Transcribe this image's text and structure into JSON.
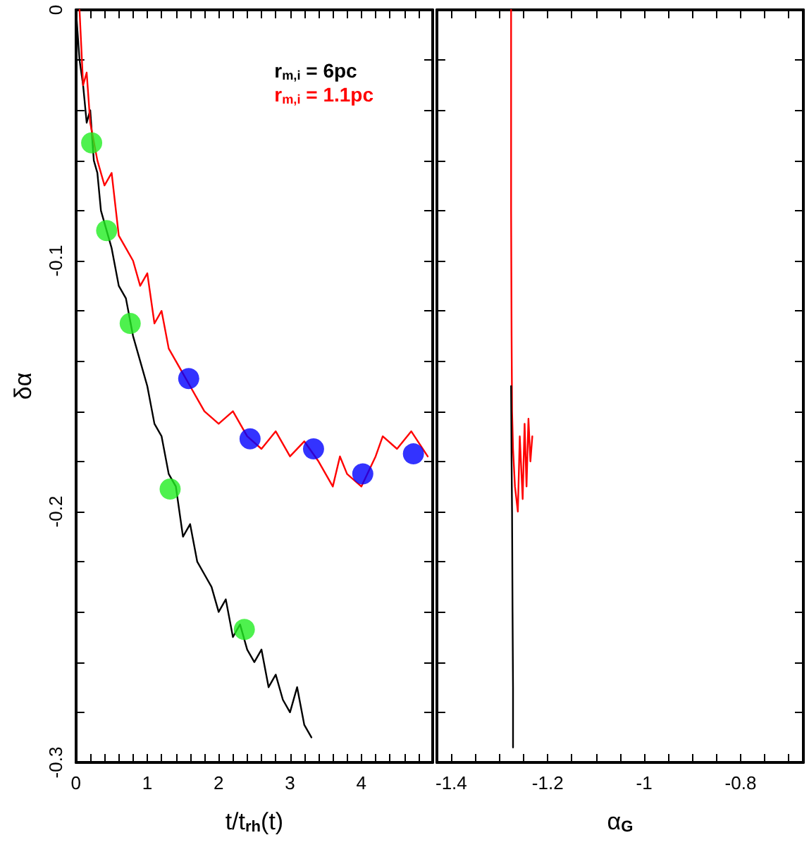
{
  "chart_data": [
    {
      "type": "line",
      "xlabel": "t/t$_{rh}$(t)",
      "ylabel": "δα",
      "xlim": [
        0,
        5
      ],
      "ylim": [
        -0.3,
        0
      ],
      "xticks": [
        0,
        {
          "value": 0.2,
          "label": null
        },
        {
          "value": 0.4,
          "label": null
        },
        {
          "value": 0.6,
          "label": null
        },
        {
          "value": 0.8,
          "label": null
        },
        1,
        {
          "value": 1.2,
          "label": null
        },
        {
          "value": 1.4,
          "label": null
        },
        {
          "value": 1.6,
          "label": null
        },
        {
          "value": 1.8,
          "label": null
        },
        2,
        {
          "value": 2.2,
          "label": null
        },
        {
          "value": 2.4,
          "label": null
        },
        {
          "value": 2.6,
          "label": null
        },
        {
          "value": 2.8,
          "label": null
        },
        3,
        {
          "value": 3.2,
          "label": null
        },
        {
          "value": 3.4,
          "label": null
        },
        {
          "value": 3.6,
          "label": null
        },
        {
          "value": 3.8,
          "label": null
        },
        4,
        {
          "value": 4.2,
          "label": null
        },
        {
          "value": 4.4,
          "label": null
        },
        {
          "value": 4.6,
          "label": null
        },
        {
          "value": 4.8,
          "label": null
        }
      ],
      "yticks": [
        -0.3,
        {
          "value": -0.28,
          "label": null
        },
        {
          "value": -0.26,
          "label": null
        },
        {
          "value": -0.24,
          "label": null
        },
        {
          "value": -0.22,
          "label": null
        },
        -0.2,
        {
          "value": -0.18,
          "label": null
        },
        {
          "value": -0.16,
          "label": null
        },
        {
          "value": -0.14,
          "label": null
        },
        {
          "value": -0.12,
          "label": null
        },
        -0.1,
        {
          "value": -0.08,
          "label": null
        },
        {
          "value": -0.06,
          "label": null
        },
        {
          "value": -0.04,
          "label": null
        },
        {
          "value": -0.02,
          "label": null
        },
        0
      ],
      "grid": false,
      "legend": "top right",
      "line_style": "solid",
      "series": [
        {
          "name": "r$_{m,i}$ = 6pc",
          "color": "#000000",
          "marker": "none",
          "x": [
            0,
            0.05,
            0.1,
            0.15,
            0.2,
            0.25,
            0.3,
            0.35,
            0.4,
            0.5,
            0.6,
            0.7,
            0.8,
            0.9,
            1.0,
            1.1,
            1.2,
            1.3,
            1.4,
            1.5,
            1.6,
            1.7,
            1.8,
            1.9,
            2.0,
            2.1,
            2.2,
            2.3,
            2.4,
            2.5,
            2.6,
            2.7,
            2.8,
            2.9,
            3.0,
            3.1,
            3.2,
            3.3
          ],
          "values": [
            0,
            -0.02,
            -0.03,
            -0.045,
            -0.04,
            -0.06,
            -0.065,
            -0.08,
            -0.085,
            -0.095,
            -0.11,
            -0.115,
            -0.13,
            -0.14,
            -0.15,
            -0.165,
            -0.17,
            -0.185,
            -0.19,
            -0.21,
            -0.205,
            -0.22,
            -0.225,
            -0.23,
            -0.24,
            -0.235,
            -0.25,
            -0.245,
            -0.255,
            -0.26,
            -0.255,
            -0.27,
            -0.265,
            -0.275,
            -0.28,
            -0.27,
            -0.285,
            -0.29
          ]
        },
        {
          "name": "r$_{m,i}$ = 1.1pc",
          "color": "#ff0000",
          "marker": "none",
          "x": [
            0.05,
            0.1,
            0.15,
            0.2,
            0.3,
            0.4,
            0.5,
            0.6,
            0.7,
            0.8,
            0.9,
            1.0,
            1.1,
            1.2,
            1.3,
            1.4,
            1.5,
            1.6,
            1.7,
            1.8,
            2.0,
            2.2,
            2.4,
            2.6,
            2.8,
            3.0,
            3.2,
            3.4,
            3.6,
            3.7,
            3.8,
            4.0,
            4.2,
            4.3,
            4.5,
            4.7,
            4.93
          ],
          "values": [
            0,
            -0.03,
            -0.025,
            -0.045,
            -0.06,
            -0.07,
            -0.065,
            -0.09,
            -0.095,
            -0.1,
            -0.11,
            -0.105,
            -0.125,
            -0.12,
            -0.135,
            -0.14,
            -0.145,
            -0.15,
            -0.155,
            -0.16,
            -0.165,
            -0.16,
            -0.17,
            -0.175,
            -0.168,
            -0.178,
            -0.172,
            -0.18,
            -0.19,
            -0.178,
            -0.185,
            -0.19,
            -0.178,
            -0.17,
            -0.175,
            -0.168,
            -0.178
          ]
        },
        {
          "color": "#22ee22",
          "type": "scatter",
          "marker": "circle",
          "x": [
            0.22,
            0.43,
            0.76,
            1.32,
            2.36
          ],
          "values": [
            -0.053,
            -0.088,
            -0.125,
            -0.191,
            -0.247
          ]
        },
        {
          "color": "#0000ff",
          "type": "scatter",
          "marker": "circle",
          "x": [
            1.58,
            2.44,
            3.33,
            4.02,
            4.73
          ],
          "values": [
            -0.147,
            -0.171,
            -0.175,
            -0.185,
            -0.177
          ]
        }
      ]
    },
    {
      "type": "line",
      "xlabel": "α$_{G}$",
      "xlim": [
        -1.43,
        -0.67
      ],
      "ylim": [
        -0.3,
        0
      ],
      "tick_labels": "x",
      "xticks": [
        -1.4,
        {
          "value": -1.35,
          "label": null
        },
        {
          "value": -1.3,
          "label": null
        },
        {
          "value": -1.25,
          "label": null
        },
        -1.2,
        {
          "value": -1.15,
          "label": null
        },
        {
          "value": -1.1,
          "label": null
        },
        {
          "value": -1.05,
          "label": null
        },
        -1,
        {
          "value": -0.95,
          "label": null
        },
        {
          "value": -0.9,
          "label": null
        },
        {
          "value": -0.85,
          "label": null
        },
        -0.8,
        {
          "value": -0.75,
          "label": null
        },
        {
          "value": -0.7,
          "label": null
        }
      ],
      "yticks": [
        -0.3,
        {
          "value": -0.28,
          "label": null
        },
        {
          "value": -0.26,
          "label": null
        },
        {
          "value": -0.24,
          "label": null
        },
        {
          "value": -0.22,
          "label": null
        },
        -0.2,
        {
          "value": -0.18,
          "label": null
        },
        {
          "value": -0.16,
          "label": null
        },
        {
          "value": -0.14,
          "label": null
        },
        {
          "value": -0.12,
          "label": null
        },
        -0.1,
        {
          "value": -0.08,
          "label": null
        },
        {
          "value": -0.06,
          "label": null
        },
        {
          "value": -0.04,
          "label": null
        },
        {
          "value": -0.02,
          "label": null
        },
        0
      ],
      "grid": false,
      "line_style": "solid",
      "marker": "none",
      "series": [
        {
          "color": "#ff0000",
          "x": [
            -1.276,
            -1.276,
            -1.275,
            -1.274,
            -1.272,
            -1.268,
            -1.262,
            -1.258,
            -1.252,
            -1.248,
            -1.244,
            -1.24,
            -1.236,
            -1.232
          ],
          "values": [
            0,
            -0.08,
            -0.13,
            -0.16,
            -0.175,
            -0.19,
            -0.2,
            -0.17,
            -0.195,
            -0.165,
            -0.19,
            -0.163,
            -0.18,
            -0.17
          ]
        },
        {
          "color": "#000000",
          "x": [
            -1.276,
            -1.275,
            -1.274,
            -1.273,
            -1.272,
            -1.272
          ],
          "values": [
            -0.15,
            -0.18,
            -0.2,
            -0.24,
            -0.27,
            -0.294
          ]
        }
      ]
    }
  ]
}
